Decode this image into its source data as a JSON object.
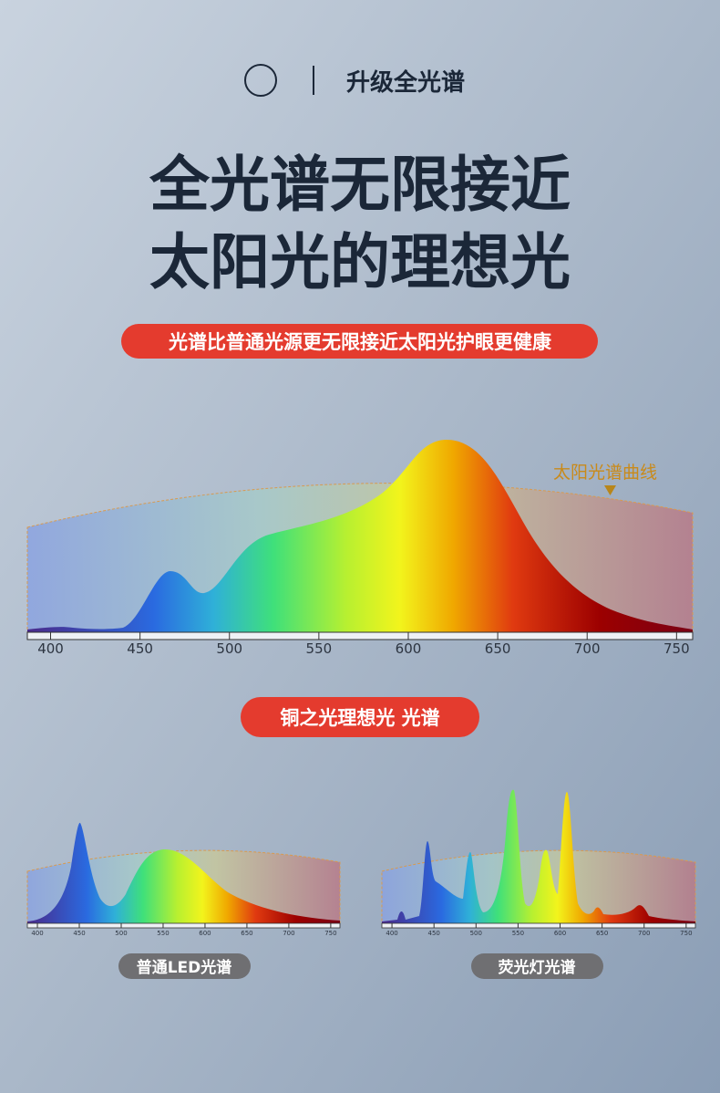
{
  "header": {
    "label": "升级全光谱",
    "title_lines": [
      "全光谱无限接近",
      "太阳光的理想光"
    ],
    "subtitle": "光谱比普通光源更无限接近太阳光护眼更健康"
  },
  "main_chart": {
    "annotation": "太阳光谱曲线",
    "xlim": [
      387,
      759
    ],
    "xticks": [
      400,
      450,
      500,
      550,
      600,
      650,
      700,
      750
    ]
  },
  "badge": "铜之光理想光 光谱",
  "small_charts": [
    {
      "label": "普通LED光谱",
      "xlim": [
        388,
        761
      ],
      "xticks": [
        400,
        450,
        500,
        550,
        600,
        650,
        700,
        750
      ]
    },
    {
      "label": "荧光灯光谱",
      "xlim": [
        388,
        761
      ],
      "xticks": [
        400,
        450,
        500,
        550,
        600,
        650,
        700,
        750
      ]
    }
  ]
}
